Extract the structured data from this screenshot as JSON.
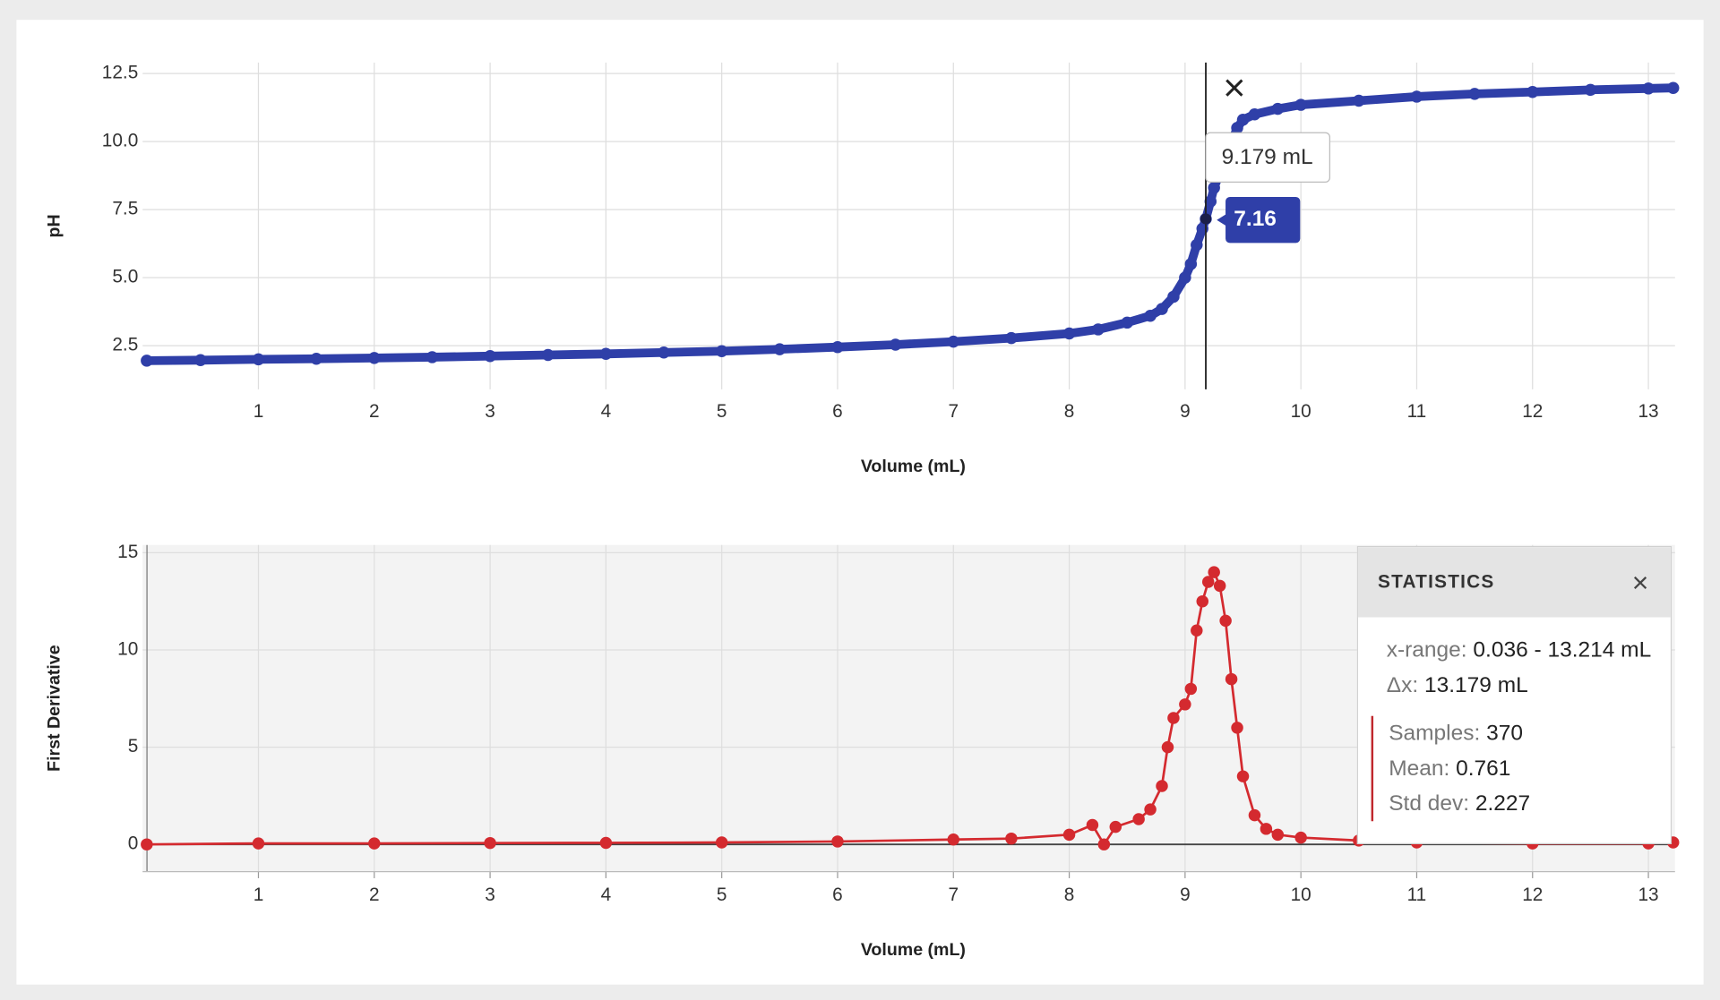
{
  "chart_data": [
    {
      "type": "line",
      "markers": true,
      "x_label": "Volume (mL)",
      "y_label": "pH",
      "xlim": [
        0,
        13.23
      ],
      "ylim": [
        0.9,
        12.9
      ],
      "xticks": [
        1,
        2,
        3,
        4,
        5,
        6,
        7,
        8,
        9,
        10,
        11,
        12,
        13
      ],
      "yticks": [
        12.5,
        {
          "value": 10,
          "label": "10.0"
        },
        7.5,
        {
          "value": 5,
          "label": "5.0"
        },
        2.5
      ],
      "grid": true,
      "series": [
        {
          "color": "#2f3fa8",
          "x": [
            0.036,
            0.5,
            1,
            1.5,
            2,
            2.5,
            3,
            3.5,
            4,
            4.5,
            5,
            5.5,
            6,
            6.5,
            7,
            7.5,
            8,
            8.25,
            8.5,
            8.7,
            8.8,
            8.9,
            9.0,
            9.05,
            9.1,
            9.15,
            9.179,
            9.22,
            9.25,
            9.45,
            9.5,
            9.6,
            9.8,
            10,
            10.5,
            11,
            11.5,
            12,
            12.5,
            13,
            13.214
          ],
          "values": [
            1.95,
            1.97,
            2.0,
            2.02,
            2.05,
            2.08,
            2.12,
            2.16,
            2.2,
            2.25,
            2.3,
            2.37,
            2.45,
            2.54,
            2.65,
            2.78,
            2.95,
            3.1,
            3.35,
            3.6,
            3.85,
            4.3,
            5.0,
            5.5,
            6.2,
            6.8,
            7.16,
            7.8,
            8.3,
            10.5,
            10.8,
            11.0,
            11.2,
            11.35,
            11.5,
            11.65,
            11.75,
            11.82,
            11.9,
            11.95,
            11.97
          ]
        }
      ],
      "crosshair": {
        "x": 9.179,
        "y": 7.16,
        "x_label": "9.179 mL"
      }
    },
    {
      "type": "line",
      "markers": true,
      "x_label": "Volume (mL)",
      "y_label": "First Derivative",
      "xlim": [
        0,
        13.23
      ],
      "ylim": [
        -1.4,
        15.4
      ],
      "xticks": [
        1,
        2,
        3,
        4,
        5,
        6,
        7,
        8,
        9,
        10,
        11,
        12,
        13
      ],
      "yticks": [
        0,
        5,
        10,
        15
      ],
      "grid": true,
      "series": [
        {
          "color": "#d42a2f",
          "x": [
            0.036,
            1,
            2,
            3,
            4,
            5,
            6,
            7,
            7.5,
            8,
            8.2,
            8.3,
            8.4,
            8.6,
            8.7,
            8.8,
            8.85,
            8.9,
            9.0,
            9.05,
            9.1,
            9.15,
            9.2,
            9.25,
            9.3,
            9.35,
            9.4,
            9.45,
            9.5,
            9.6,
            9.7,
            9.8,
            10,
            10.5,
            11,
            12,
            13,
            13.214
          ],
          "values": [
            0,
            0.05,
            0.05,
            0.07,
            0.08,
            0.1,
            0.15,
            0.25,
            0.3,
            0.5,
            1.0,
            0,
            0.9,
            1.3,
            1.8,
            3.0,
            5.0,
            6.5,
            7.2,
            8.0,
            11.0,
            12.5,
            13.5,
            14.0,
            13.3,
            11.5,
            8.5,
            6.0,
            3.5,
            1.5,
            0.8,
            0.5,
            0.35,
            0.2,
            0.1,
            0.05,
            0.05,
            0.1
          ]
        }
      ],
      "statistics": {
        "title": "STATISTICS",
        "groups": [
          [
            {
              "label": "x-range:",
              "value": "0.036 - 13.214 mL"
            },
            {
              "label": "Δx:",
              "value": "13.179 mL"
            }
          ],
          [
            {
              "label": "Samples:",
              "value": "370"
            },
            {
              "label": "Mean:",
              "value": "0.761"
            },
            {
              "label": "Std dev:",
              "value": "2.227"
            }
          ]
        ]
      }
    }
  ]
}
